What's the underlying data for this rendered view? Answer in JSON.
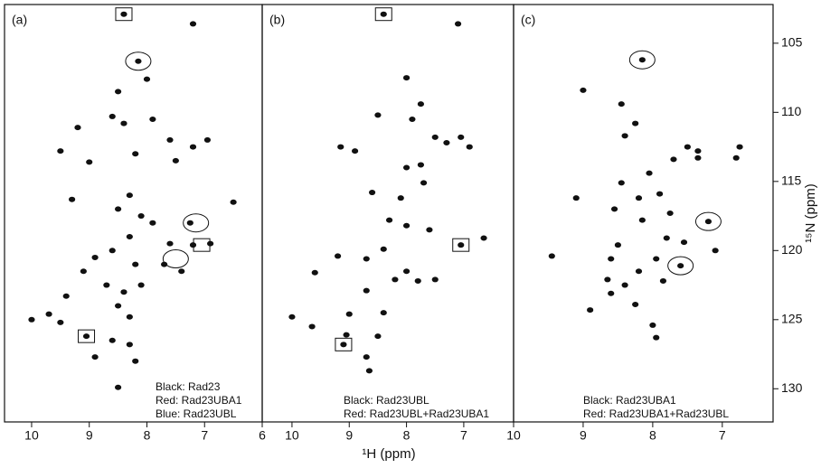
{
  "chart_data": [
    {
      "type": "scatter",
      "label": "(a)",
      "color": "#111",
      "xlim": [
        10.47,
        6.0
      ],
      "ylim": [
        132.4,
        102.2
      ],
      "xticks": [
        10,
        9,
        8,
        7,
        6
      ],
      "annotations": [
        "Black: Rad23",
        "Red: Rad23UBA1",
        "Blue: Rad23UBL"
      ],
      "x": [
        8.4,
        7.2,
        8.15,
        8.0,
        8.5,
        8.6,
        8.4,
        7.9,
        7.6,
        7.2,
        6.95,
        7.5,
        8.2,
        9.2,
        9.5,
        9.0,
        9.3,
        8.3,
        8.5,
        8.1,
        7.9,
        7.25,
        6.5,
        7.6,
        7.2,
        6.9,
        8.3,
        8.6,
        8.2,
        8.9,
        9.1,
        9.4,
        8.7,
        8.4,
        8.1,
        7.7,
        7.4,
        8.5,
        8.3,
        9.7,
        10.0,
        9.5,
        9.05,
        8.6,
        8.3,
        8.9,
        8.5,
        8.2
      ],
      "values": [
        102.9,
        103.6,
        106.3,
        107.6,
        108.5,
        110.3,
        110.8,
        110.5,
        112,
        112.5,
        112,
        113.5,
        113,
        111.1,
        112.8,
        113.6,
        116.3,
        116,
        117,
        117.5,
        118,
        118,
        116.5,
        119.5,
        119.6,
        119.5,
        119,
        120,
        121,
        120.5,
        121.5,
        123.3,
        122.5,
        123,
        122.5,
        121,
        121.5,
        124,
        124.8,
        124.6,
        125,
        125.2,
        126.2,
        126.5,
        126.8,
        127.7,
        129.9,
        128
      ],
      "highlights": [
        {
          "shape": "box",
          "x": 8.4,
          "y": 102.9
        },
        {
          "shape": "ellipse",
          "x": 8.15,
          "y": 106.3
        },
        {
          "shape": "ellipse",
          "x": 7.15,
          "y": 118
        },
        {
          "shape": "box",
          "x": 7.05,
          "y": 119.6
        },
        {
          "shape": "ellipse",
          "x": 7.5,
          "y": 120.6
        },
        {
          "shape": "box",
          "x": 9.05,
          "y": 126.2
        }
      ]
    },
    {
      "type": "scatter",
      "label": "(b)",
      "color": "#111",
      "xlabel": "¹H (ppm)",
      "xlim": [
        10.52,
        6.13
      ],
      "ylim": [
        132.4,
        102.2
      ],
      "xticks": [
        10,
        9,
        8,
        7
      ],
      "annotations": [
        "Black: Rad23UBL",
        "Red: Rad23UBL+Rad23UBA1"
      ],
      "x": [
        8.4,
        7.1,
        8.0,
        7.75,
        8.5,
        7.9,
        7.5,
        7.3,
        6.9,
        7.05,
        9.15,
        8.9,
        7.75,
        8.0,
        7.7,
        8.6,
        8.1,
        8.3,
        8.0,
        7.6,
        7.05,
        6.65,
        8.4,
        9.2,
        8.7,
        8.0,
        7.8,
        8.2,
        7.5,
        9.6,
        8.7,
        8.4,
        9.0,
        10.0,
        9.65,
        9.05,
        8.5,
        9.1,
        8.7,
        8.65
      ],
      "values": [
        102.9,
        103.6,
        107.5,
        109.4,
        110.2,
        110.5,
        111.8,
        112.2,
        112.5,
        111.8,
        112.5,
        112.8,
        113.8,
        114,
        115.1,
        115.8,
        116.2,
        117.8,
        118.2,
        118.5,
        119.6,
        119.1,
        119.9,
        120.4,
        120.6,
        121.5,
        122.2,
        122.1,
        122.1,
        121.6,
        122.9,
        124.5,
        124.6,
        124.8,
        125.5,
        126.1,
        126.2,
        126.8,
        127.7,
        128.7
      ],
      "highlights": [
        {
          "shape": "box",
          "x": 8.4,
          "y": 102.9
        },
        {
          "shape": "box",
          "x": 7.05,
          "y": 119.6
        },
        {
          "shape": "box",
          "x": 9.1,
          "y": 126.8
        }
      ]
    },
    {
      "type": "scatter",
      "label": "(c)",
      "color": "#111",
      "ylabel": "¹⁵N (ppm)",
      "xlim": [
        10.0,
        6.27
      ],
      "ylim": [
        132.4,
        102.2
      ],
      "xticks": [
        10,
        9,
        8,
        7
      ],
      "yticks": [
        105,
        110,
        115,
        120,
        125,
        130
      ],
      "annotations": [
        "Black: Rad23UBA1",
        "Red: Rad23UBA1+Rad23UBL"
      ],
      "x": [
        8.15,
        9.0,
        8.45,
        8.25,
        8.4,
        7.5,
        7.35,
        6.75,
        6.8,
        7.7,
        7.35,
        8.05,
        8.45,
        7.9,
        8.2,
        9.1,
        8.55,
        7.75,
        8.15,
        7.2,
        7.8,
        8.5,
        7.55,
        7.1,
        9.45,
        8.6,
        7.95,
        7.6,
        8.2,
        8.65,
        8.4,
        7.85,
        8.6,
        8.25,
        8.9,
        8.0,
        7.95
      ],
      "values": [
        106.2,
        108.4,
        109.4,
        110.8,
        111.7,
        112.5,
        112.8,
        112.5,
        113.3,
        113.4,
        113.3,
        114.4,
        115.1,
        115.9,
        116.2,
        116.2,
        117,
        117.3,
        117.8,
        117.9,
        119.1,
        119.6,
        119.4,
        120,
        120.4,
        120.6,
        120.6,
        121.1,
        121.5,
        122.1,
        122.5,
        122.2,
        123.1,
        123.9,
        124.3,
        125.4,
        126.3
      ],
      "highlights": [
        {
          "shape": "ellipse",
          "x": 8.15,
          "y": 106.2
        },
        {
          "shape": "ellipse",
          "x": 7.2,
          "y": 117.9
        },
        {
          "shape": "ellipse",
          "x": 7.6,
          "y": 121.1
        }
      ]
    }
  ]
}
